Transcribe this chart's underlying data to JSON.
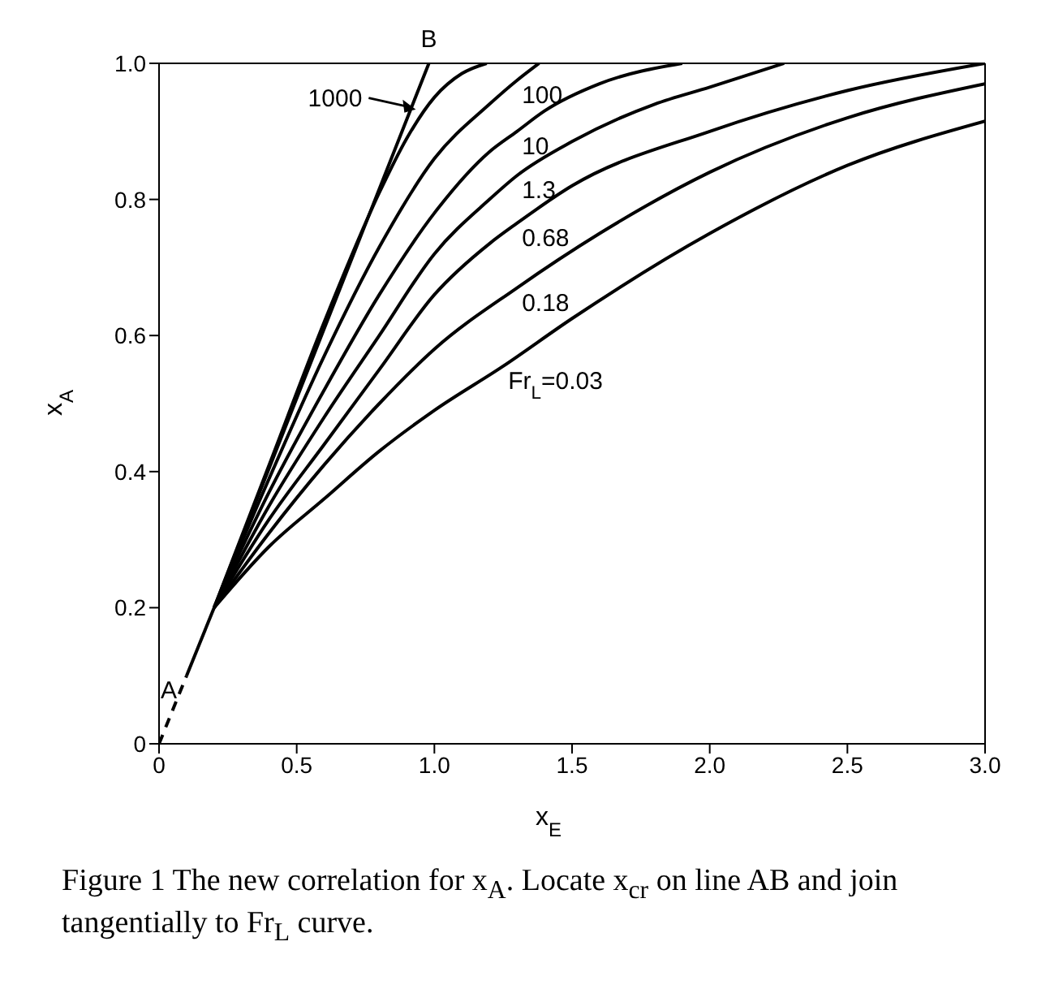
{
  "chart_data": {
    "type": "line",
    "xlabel": "x$_{E}$",
    "ylabel": "x$_{A}$",
    "xlim": [
      0,
      3
    ],
    "ylim": [
      0,
      1
    ],
    "xticks": [
      0,
      0.5,
      {
        "value": 1,
        "label": "1.0"
      },
      1.5,
      {
        "value": 2,
        "label": "2.0"
      },
      2.5,
      {
        "value": 3,
        "label": "3.0"
      }
    ],
    "yticks": [
      0,
      0.2,
      0.4,
      0.6,
      0.8,
      {
        "value": 1,
        "label": "1.0"
      }
    ],
    "grid": false,
    "marker": "none",
    "line_style": "solid",
    "series": [
      {
        "color": "#000000",
        "line_style": "dashed",
        "x": [
          0,
          0.1
        ],
        "values": [
          0,
          0.1
        ]
      },
      {
        "color": "#000000",
        "x": [
          0.1,
          0.2,
          0.98
        ],
        "values": [
          0.1,
          0.2,
          1.0
        ]
      },
      {
        "color": "#000000",
        "x": [
          0.2,
          0.4,
          0.6,
          0.8,
          0.9,
          1.0,
          1.1,
          1.19
        ],
        "values": [
          0.2,
          0.41,
          0.62,
          0.81,
          0.89,
          0.95,
          0.985,
          1.0
        ]
      },
      {
        "color": "#000000",
        "x": [
          0.2,
          0.4,
          0.6,
          0.8,
          1.0,
          1.2,
          1.3,
          1.38
        ],
        "values": [
          0.2,
          0.39,
          0.57,
          0.73,
          0.86,
          0.94,
          0.975,
          1.0
        ]
      },
      {
        "color": "#000000",
        "x": [
          0.2,
          0.4,
          0.6,
          0.8,
          1.0,
          1.2,
          1.3,
          1.4,
          1.6,
          1.9
        ],
        "values": [
          0.2,
          0.37,
          0.52,
          0.66,
          0.78,
          0.87,
          0.9,
          0.93,
          0.97,
          1.0
        ]
      },
      {
        "color": "#000000",
        "x": [
          0.2,
          0.4,
          0.6,
          0.8,
          1.0,
          1.2,
          1.3,
          1.5,
          1.8,
          2.0,
          2.27
        ],
        "values": [
          0.2,
          0.35,
          0.48,
          0.6,
          0.72,
          0.8,
          0.835,
          0.885,
          0.94,
          0.965,
          1.0
        ]
      },
      {
        "color": "#000000",
        "x": [
          0.2,
          0.4,
          0.6,
          0.8,
          1.0,
          1.2,
          1.3,
          1.5,
          2.0,
          2.5,
          3.0
        ],
        "values": [
          0.2,
          0.33,
          0.44,
          0.55,
          0.66,
          0.735,
          0.765,
          0.82,
          0.9,
          0.96,
          1.0
        ]
      },
      {
        "color": "#000000",
        "x": [
          0.2,
          0.4,
          0.6,
          0.8,
          1.0,
          1.3,
          1.6,
          2.0,
          2.5,
          3.0
        ],
        "values": [
          0.2,
          0.31,
          0.41,
          0.5,
          0.58,
          0.67,
          0.75,
          0.84,
          0.92,
          0.97
        ]
      },
      {
        "color": "#000000",
        "x": [
          0.2,
          0.4,
          0.6,
          0.8,
          1.0,
          1.25,
          1.5,
          2.0,
          2.5,
          3.0
        ],
        "values": [
          0.2,
          0.29,
          0.36,
          0.43,
          0.49,
          0.555,
          0.625,
          0.75,
          0.85,
          0.915
        ]
      }
    ],
    "annotations": [
      {
        "text": "A",
        "x": 0.1,
        "y": 0.1
      },
      {
        "text": "B",
        "x": 0.98,
        "y": 1.0
      },
      {
        "text": "1000",
        "x": 0.95,
        "y": 0.93
      },
      {
        "text": "100",
        "x": 1.3,
        "y": 0.975
      },
      {
        "text": "10",
        "x": 1.3,
        "y": 0.9
      },
      {
        "text": "1.3",
        "x": 1.3,
        "y": 0.835
      },
      {
        "text": "0.68",
        "x": 1.3,
        "y": 0.765
      },
      {
        "text": "0.18",
        "x": 1.3,
        "y": 0.67
      },
      {
        "text": "Fr$_{L}$=0.03",
        "x": 1.25,
        "y": 0.555
      },
      "Figure 1  The new correlation for x$_{A}$. Locate x$_{cr}$ on line AB and join tangentially to Fr$_{L}$ curve."
    ]
  }
}
